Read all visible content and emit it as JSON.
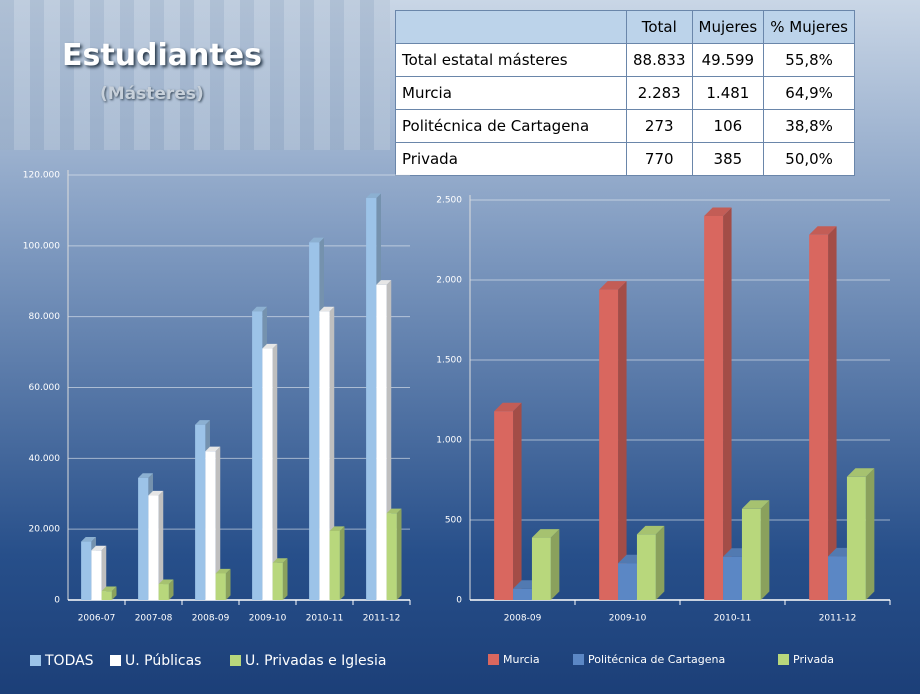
{
  "header": {
    "title": "Estudiantes",
    "subtitle": "(Másteres)"
  },
  "table": {
    "columns": [
      "Total",
      "Mujeres",
      "% Mujeres"
    ],
    "rows": [
      [
        "Total estatal másteres",
        "88.833",
        "49.599",
        "55,8%"
      ],
      [
        "Murcia",
        "2.283",
        "1.481",
        "64,9%"
      ],
      [
        "Politécnica de Cartagena",
        "273",
        "106",
        "38,8%"
      ],
      [
        "Privada",
        "770",
        "385",
        "50,0%"
      ]
    ]
  },
  "chart_data": [
    {
      "type": "bar",
      "categories": [
        "2006-07",
        "2007-08",
        "2008-09",
        "2009-10",
        "2010-11",
        "2011-12"
      ],
      "series": [
        {
          "name": "TODAS",
          "color": "#9cc3e8",
          "values": [
            16500,
            34500,
            49500,
            81500,
            101000,
            113500
          ]
        },
        {
          "name": "U. Públicas",
          "color": "#ffffff",
          "values": [
            14000,
            29500,
            42000,
            71000,
            81500,
            89000
          ]
        },
        {
          "name": "U. Privadas e Iglesia",
          "color": "#b8d77c",
          "values": [
            2500,
            4500,
            7500,
            10500,
            19500,
            24500
          ]
        }
      ],
      "ylim": [
        0,
        120000
      ],
      "yticks": [
        0,
        {
          "value": 20000,
          "label": "20.000"
        },
        {
          "value": 40000,
          "label": "40.000"
        },
        {
          "value": 60000,
          "label": "60.000"
        },
        {
          "value": 80000,
          "label": "80.000"
        },
        {
          "value": 100000,
          "label": "100.000"
        },
        {
          "value": 120000,
          "label": "120.000"
        }
      ],
      "grid": true
    },
    {
      "type": "bar",
      "categories": [
        "2008-09",
        "2009-10",
        "2010-11",
        "2011-12"
      ],
      "series": [
        {
          "name": "Murcia",
          "color": "#d9675f",
          "values": [
            1180,
            1940,
            2400,
            2283
          ]
        },
        {
          "name": "Politécnica de Cartagena",
          "color": "#5b87c5",
          "values": [
            70,
            230,
            270,
            273
          ]
        },
        {
          "name": "Privada",
          "color": "#b8d77c",
          "values": [
            390,
            410,
            570,
            770
          ]
        }
      ],
      "ylim": [
        0,
        2500
      ],
      "yticks": [
        0,
        500,
        {
          "value": 1000,
          "label": "1.000"
        },
        {
          "value": 1500,
          "label": "1.500"
        },
        {
          "value": 2000,
          "label": "2.000"
        },
        {
          "value": 2500,
          "label": "2.500"
        }
      ],
      "grid": true
    }
  ]
}
